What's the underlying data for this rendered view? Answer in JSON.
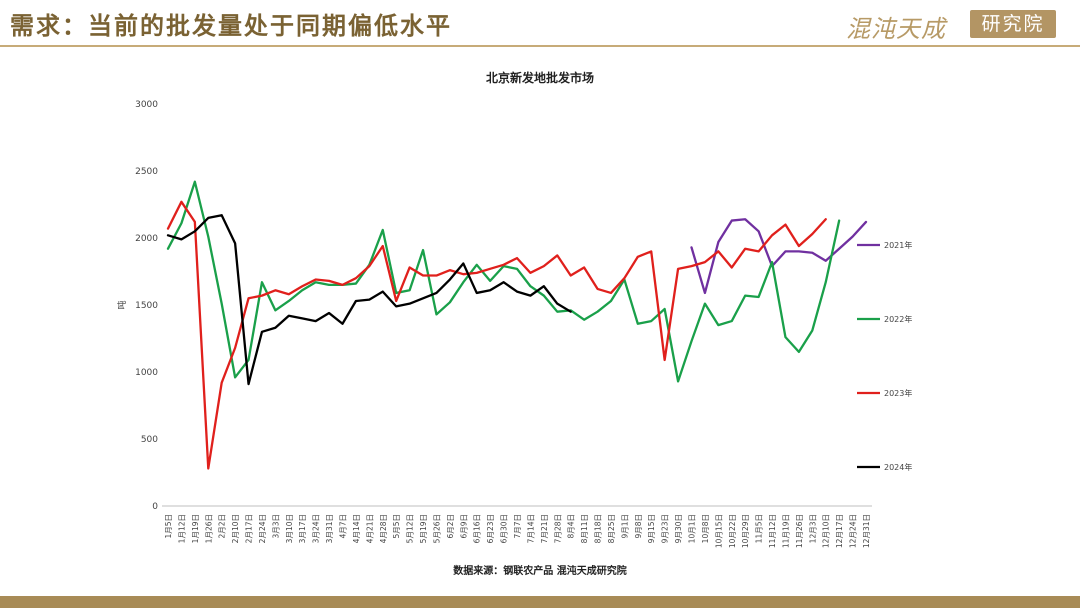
{
  "header": {
    "title": "需求：当前的批发量处于同期偏低水平",
    "brand_script": "混沌天成",
    "brand_box": "研究院"
  },
  "footer": {
    "source": "数据来源：钢联农产品 混沌天成研究院"
  },
  "colors": {
    "gold": "#b39564",
    "series_2021": "#7030a0",
    "series_2022": "#1aa04a",
    "series_2023": "#e0201c",
    "series_2024": "#000000"
  },
  "chart_data": {
    "type": "line",
    "title": "北京新发地批发市场",
    "ylabel": "吨",
    "xlabel": "",
    "ylim": [
      0,
      3000
    ],
    "yticks": [
      0,
      500,
      1000,
      1500,
      2000,
      2500,
      3000
    ],
    "grid": false,
    "legend_position": "right",
    "categories": [
      "1月5日",
      "1月12日",
      "1月19日",
      "1月26日",
      "2月2日",
      "2月10日",
      "2月17日",
      "2月24日",
      "3月3日",
      "3月10日",
      "3月17日",
      "3月24日",
      "3月31日",
      "4月7日",
      "4月14日",
      "4月21日",
      "4月28日",
      "5月5日",
      "5月12日",
      "5月19日",
      "5月26日",
      "6月2日",
      "6月9日",
      "6月16日",
      "6月23日",
      "6月30日",
      "7月7日",
      "7月14日",
      "7月21日",
      "7月28日",
      "8月4日",
      "8月11日",
      "8月18日",
      "8月25日",
      "9月1日",
      "9月8日",
      "9月15日",
      "9月23日",
      "9月30日",
      "10月1日",
      "10月8日",
      "10月15日",
      "10月22日",
      "10月29日",
      "11月5日",
      "11月12日",
      "11月19日",
      "11月26日",
      "12月3日",
      "12月10日",
      "12月17日",
      "12月24日",
      "12月31日"
    ],
    "x_tick_labels": [
      "1月5日",
      "1月12日",
      "1月19日",
      "1月26日",
      "2月2日",
      "2月10日",
      "2月17日",
      "2月24日",
      "3月3日",
      "3月10日",
      "3月17日",
      "3月24日",
      "3月31日",
      "4月7日",
      "4月14日",
      "4月21日",
      "4月28日",
      "5月5日",
      "5月12日",
      "5月19日",
      "5月26日",
      "6月2日",
      "6月9日",
      "6月16日",
      "6月23日",
      "6月30日",
      "7月7日",
      "7月14日",
      "7月21日",
      "7月28日",
      "8月4日",
      "8月11日",
      "8月18日",
      "8月25日",
      "9月1日",
      "9月8日",
      "9月15日",
      "9月23日",
      "9月30日",
      "10月1日",
      "10月8日",
      "10月15日",
      "10月22日",
      "10月29日",
      "11月5日",
      "11月12日",
      "11月19日",
      "11月26日",
      "12月3日",
      "12月10日",
      "12月17日",
      "12月24日",
      "12月31日"
    ],
    "series": [
      {
        "name": "2021年",
        "color": "#7030a0",
        "values": [
          null,
          null,
          null,
          null,
          null,
          null,
          null,
          null,
          null,
          null,
          null,
          null,
          null,
          null,
          null,
          null,
          null,
          null,
          null,
          null,
          null,
          null,
          null,
          null,
          null,
          null,
          null,
          null,
          null,
          null,
          null,
          null,
          null,
          null,
          null,
          null,
          null,
          null,
          null,
          1930,
          1590,
          1970,
          2130,
          2140,
          2050,
          1790,
          1900,
          1900,
          1890,
          1830,
          1920,
          2010,
          2120
        ]
      },
      {
        "name": "2022年",
        "color": "#1aa04a",
        "values": [
          1920,
          2110,
          2420,
          2010,
          1510,
          960,
          1090,
          1670,
          1460,
          1530,
          1610,
          1670,
          1650,
          1650,
          1660,
          1800,
          2060,
          1590,
          1610,
          1910,
          1430,
          1520,
          1670,
          1800,
          1680,
          1790,
          1770,
          1640,
          1570,
          1450,
          1460,
          1390,
          1450,
          1530,
          1690,
          1360,
          1380,
          1470,
          930,
          1230,
          1510,
          1350,
          1380,
          1570,
          1560,
          1820,
          1260,
          1150,
          1310,
          1670,
          2130,
          null,
          null
        ]
      },
      {
        "name": "2023年",
        "color": "#e0201c",
        "values": [
          2070,
          2270,
          2120,
          280,
          920,
          1180,
          1550,
          1570,
          1610,
          1580,
          1640,
          1690,
          1680,
          1650,
          1700,
          1790,
          1940,
          1530,
          1780,
          1720,
          1720,
          1760,
          1730,
          1740,
          1770,
          1800,
          1850,
          1740,
          1790,
          1870,
          1720,
          1780,
          1620,
          1590,
          1700,
          1860,
          1900,
          1090,
          1770,
          1790,
          1820,
          1900,
          1780,
          1920,
          1900,
          2020,
          2100,
          1940,
          2030,
          2140,
          null,
          null,
          null
        ]
      },
      {
        "name": "2024年",
        "color": "#000000",
        "values": [
          2020,
          1990,
          2050,
          2150,
          2170,
          1960,
          910,
          1300,
          1330,
          1420,
          1400,
          1380,
          1440,
          1360,
          1530,
          1540,
          1600,
          1490,
          1510,
          1550,
          1590,
          1690,
          1810,
          1590,
          1610,
          1670,
          1600,
          1570,
          1640,
          1510,
          1450,
          null,
          null,
          null,
          null,
          null,
          null,
          null,
          null,
          null,
          null,
          null,
          null,
          null,
          null,
          null,
          null,
          null,
          null,
          null,
          null,
          null,
          null
        ]
      }
    ],
    "legend_entries": [
      "2021年",
      "2022年",
      "2023年",
      "2024年"
    ]
  }
}
